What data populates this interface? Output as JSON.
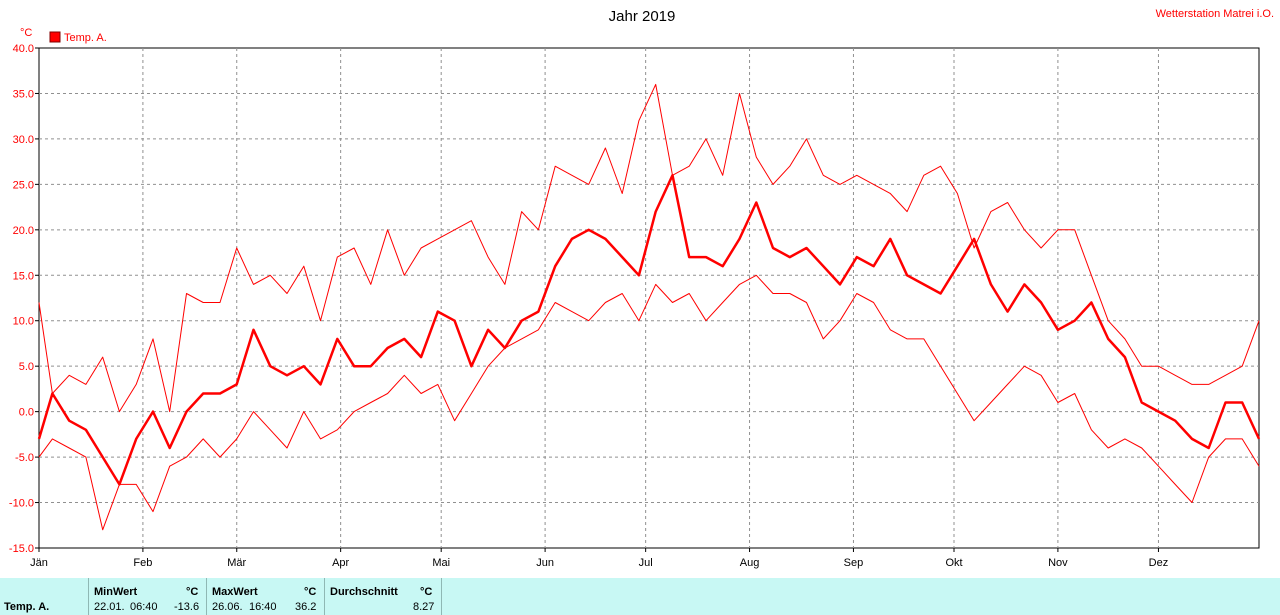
{
  "header": {
    "title": "Jahr 2019",
    "station": "Wetterstation Matrei i.O."
  },
  "legend": {
    "label": "Temp. A.",
    "color": "#ff0000"
  },
  "chart_data": {
    "type": "line",
    "title": "Jahr 2019",
    "ylabel": "°C",
    "xlabel": "",
    "ylim": [
      -15,
      40
    ],
    "ytick_step": 5,
    "ytick_labels": [
      "40.0",
      "35.0",
      "30.0",
      "25.0",
      "20.0",
      "15.0",
      "10.0",
      "5.0",
      "0.0",
      "-5.0",
      "-10.0",
      "-15.0"
    ],
    "x_unit": "day of year",
    "xlim": [
      1,
      365
    ],
    "month_ticks": [
      {
        "label": "Jän",
        "day": 1
      },
      {
        "label": "Feb",
        "day": 32
      },
      {
        "label": "Mär",
        "day": 60
      },
      {
        "label": "Apr",
        "day": 91
      },
      {
        "label": "Mai",
        "day": 121
      },
      {
        "label": "Jun",
        "day": 152
      },
      {
        "label": "Jul",
        "day": 182
      },
      {
        "label": "Aug",
        "day": 213
      },
      {
        "label": "Sep",
        "day": 244
      },
      {
        "label": "Okt",
        "day": 274
      },
      {
        "label": "Nov",
        "day": 305
      },
      {
        "label": "Dez",
        "day": 335
      }
    ],
    "grid": true,
    "legend_position": "top-left",
    "series": [
      {
        "name": "Temp. A.",
        "role": "max",
        "color": "#ff0000",
        "x": [
          1,
          5,
          10,
          15,
          20,
          25,
          30,
          35,
          40,
          45,
          50,
          55,
          60,
          65,
          70,
          75,
          80,
          85,
          90,
          95,
          100,
          105,
          110,
          115,
          120,
          125,
          130,
          135,
          140,
          145,
          150,
          155,
          160,
          165,
          170,
          175,
          180,
          185,
          190,
          195,
          200,
          205,
          210,
          215,
          220,
          225,
          230,
          235,
          240,
          245,
          250,
          255,
          260,
          265,
          270,
          275,
          280,
          285,
          290,
          295,
          300,
          305,
          310,
          315,
          320,
          325,
          330,
          335,
          340,
          345,
          350,
          355,
          360,
          365
        ],
        "y": [
          12,
          2,
          4,
          3,
          6,
          0,
          3,
          8,
          0,
          13,
          12,
          12,
          18,
          14,
          15,
          13,
          16,
          10,
          17,
          18,
          14,
          20,
          15,
          18,
          19,
          20,
          21,
          17,
          14,
          22,
          20,
          27,
          26,
          25,
          29,
          24,
          32,
          36,
          26,
          27,
          30,
          26,
          35,
          28,
          25,
          27,
          30,
          26,
          25,
          26,
          25,
          24,
          22,
          26,
          27,
          24,
          18,
          22,
          23,
          20,
          18,
          20,
          20,
          15,
          10,
          8,
          5,
          5,
          4,
          3,
          3,
          4,
          5,
          10
        ]
      },
      {
        "name": "Temp. A.",
        "role": "mean",
        "color": "#ff0000",
        "x": [
          1,
          5,
          10,
          15,
          20,
          25,
          30,
          35,
          40,
          45,
          50,
          55,
          60,
          65,
          70,
          75,
          80,
          85,
          90,
          95,
          100,
          105,
          110,
          115,
          120,
          125,
          130,
          135,
          140,
          145,
          150,
          155,
          160,
          165,
          170,
          175,
          180,
          185,
          190,
          195,
          200,
          205,
          210,
          215,
          220,
          225,
          230,
          235,
          240,
          245,
          250,
          255,
          260,
          265,
          270,
          275,
          280,
          285,
          290,
          295,
          300,
          305,
          310,
          315,
          320,
          325,
          330,
          335,
          340,
          345,
          350,
          355,
          360,
          365
        ],
        "y": [
          -3,
          2,
          -1,
          -2,
          -5,
          -8,
          -3,
          0,
          -4,
          0,
          2,
          2,
          3,
          9,
          5,
          4,
          5,
          3,
          8,
          5,
          5,
          7,
          8,
          6,
          11,
          10,
          5,
          9,
          7,
          10,
          11,
          16,
          19,
          20,
          19,
          17,
          15,
          22,
          26,
          17,
          17,
          16,
          19,
          23,
          18,
          17,
          18,
          16,
          14,
          17,
          16,
          19,
          15,
          14,
          13,
          16,
          19,
          14,
          11,
          14,
          12,
          9,
          10,
          12,
          8,
          6,
          1,
          0,
          -1,
          -3,
          -4,
          1,
          1,
          -3
        ]
      },
      {
        "name": "Temp. A.",
        "role": "min",
        "color": "#ff0000",
        "x": [
          1,
          5,
          10,
          15,
          20,
          25,
          30,
          35,
          40,
          45,
          50,
          55,
          60,
          65,
          70,
          75,
          80,
          85,
          90,
          95,
          100,
          105,
          110,
          115,
          120,
          125,
          130,
          135,
          140,
          145,
          150,
          155,
          160,
          165,
          170,
          175,
          180,
          185,
          190,
          195,
          200,
          205,
          210,
          215,
          220,
          225,
          230,
          235,
          240,
          245,
          250,
          255,
          260,
          265,
          270,
          275,
          280,
          285,
          290,
          295,
          300,
          305,
          310,
          315,
          320,
          325,
          330,
          335,
          340,
          345,
          350,
          355,
          360,
          365
        ],
        "y": [
          -5,
          -3,
          -4,
          -5,
          -13,
          -8,
          -8,
          -11,
          -6,
          -5,
          -3,
          -5,
          -3,
          0,
          -2,
          -4,
          0,
          -3,
          -2,
          0,
          1,
          2,
          4,
          2,
          3,
          -1,
          2,
          5,
          7,
          8,
          9,
          12,
          11,
          10,
          12,
          13,
          10,
          14,
          12,
          13,
          10,
          12,
          14,
          15,
          13,
          13,
          12,
          8,
          10,
          13,
          12,
          9,
          8,
          8,
          5,
          2,
          -1,
          1,
          3,
          5,
          4,
          1,
          2,
          -2,
          -4,
          -3,
          -4,
          -6,
          -8,
          -10,
          -5,
          -3,
          -3,
          -6
        ]
      }
    ]
  },
  "stats": {
    "row_label": "Temp. A.",
    "min": {
      "header": "MinWert",
      "unit": "°C",
      "date": "22.01.",
      "time": "06:40",
      "value": "-13.6"
    },
    "max": {
      "header": "MaxWert",
      "unit": "°C",
      "date": "26.06.",
      "time": "16:40",
      "value": "36.2"
    },
    "avg": {
      "header": "Durchschnitt",
      "unit": "°C",
      "value": "8.27"
    }
  }
}
